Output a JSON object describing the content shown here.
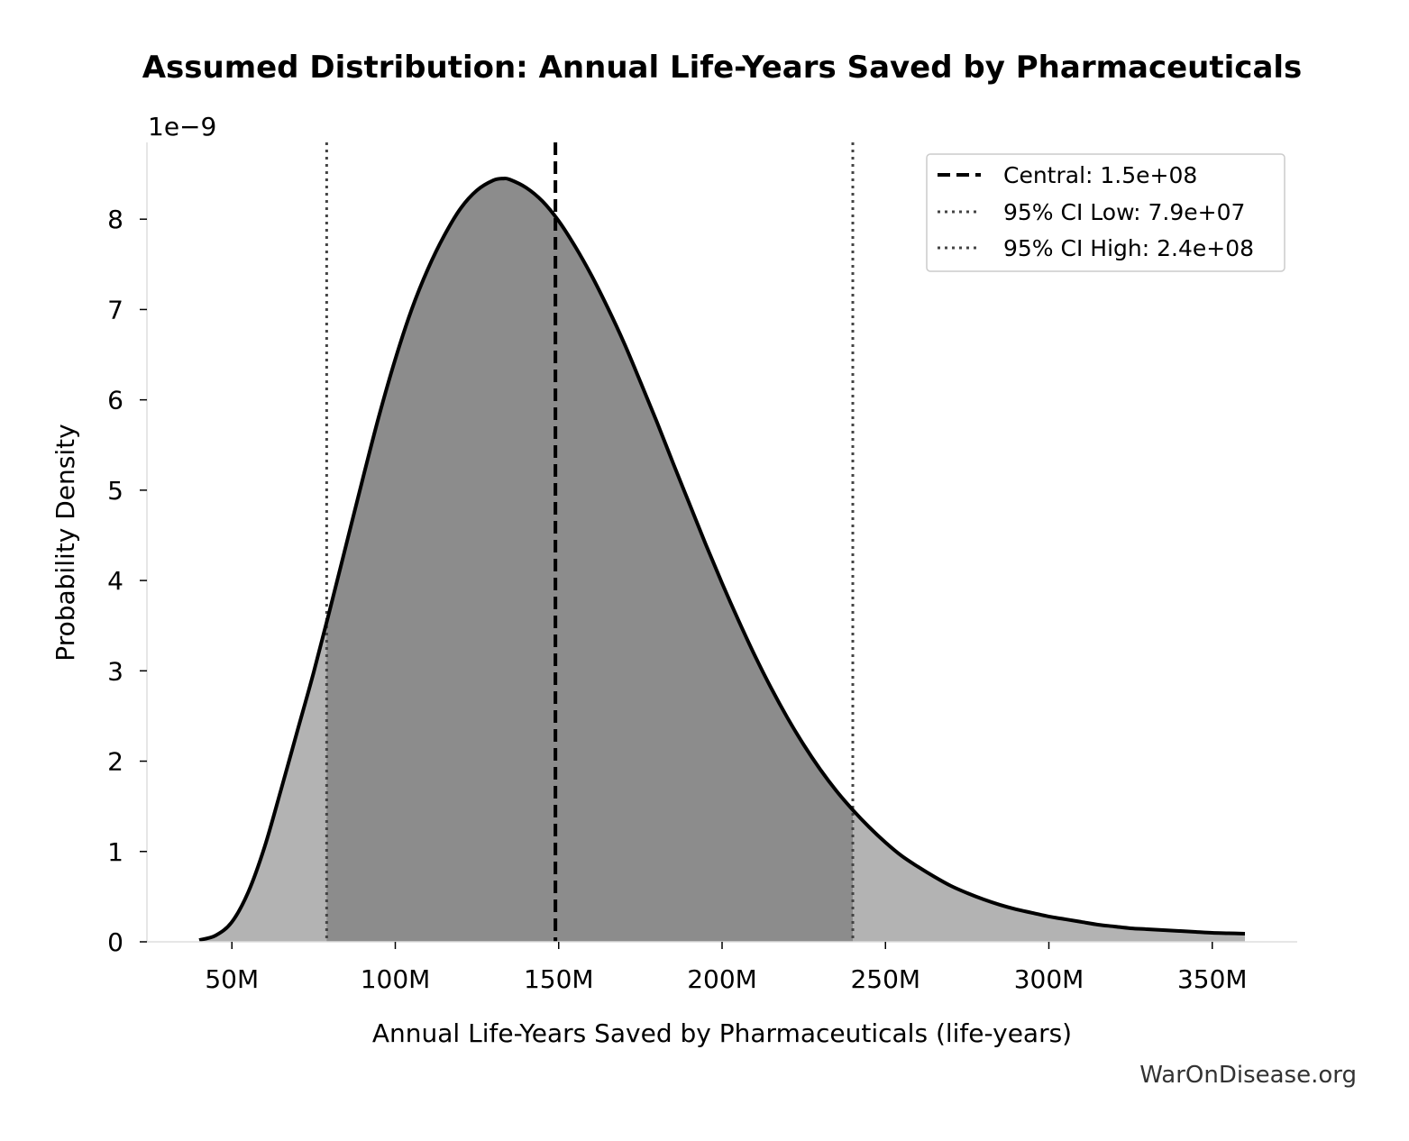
{
  "chart_data": {
    "type": "area",
    "title": "Assumed Distribution: Annual Life-Years Saved by Pharmaceuticals",
    "xlabel": "Annual Life-Years Saved by Pharmaceuticals (life-years)",
    "ylabel": "Probability Density",
    "y_scale_label": "1e−9",
    "xlim": [
      24000000,
      376000000
    ],
    "ylim": [
      0,
      8.85
    ],
    "x_ticks": [
      50000000,
      100000000,
      150000000,
      200000000,
      250000000,
      300000000,
      350000000
    ],
    "x_tick_labels": [
      "50M",
      "100M",
      "150M",
      "200M",
      "250M",
      "300M",
      "350M"
    ],
    "y_ticks": [
      0,
      1,
      2,
      3,
      4,
      5,
      6,
      7,
      8
    ],
    "y_tick_labels": [
      "0",
      "1",
      "2",
      "3",
      "4",
      "5",
      "6",
      "7",
      "8"
    ],
    "grid": false,
    "legend_position": "top-right",
    "series": [
      {
        "x": [
          40000000,
          45000000,
          50000000,
          55000000,
          60000000,
          65000000,
          70000000,
          75000000,
          80000000,
          85000000,
          90000000,
          95000000,
          100000000,
          105000000,
          110000000,
          115000000,
          120000000,
          125000000,
          130000000,
          133000000,
          135000000,
          140000000,
          145000000,
          150000000,
          155000000,
          160000000,
          165000000,
          170000000,
          175000000,
          180000000,
          185000000,
          190000000,
          195000000,
          200000000,
          205000000,
          210000000,
          215000000,
          220000000,
          225000000,
          230000000,
          235000000,
          240000000,
          245000000,
          250000000,
          255000000,
          260000000,
          265000000,
          270000000,
          275000000,
          280000000,
          285000000,
          290000000,
          295000000,
          300000000,
          305000000,
          310000000,
          315000000,
          320000000,
          325000000,
          330000000,
          335000000,
          340000000,
          345000000,
          350000000,
          355000000,
          360000000
        ],
        "values": [
          0.02,
          0.07,
          0.22,
          0.55,
          1.05,
          1.68,
          2.33,
          2.98,
          3.68,
          4.4,
          5.12,
          5.82,
          6.45,
          7.0,
          7.45,
          7.82,
          8.12,
          8.32,
          8.43,
          8.45,
          8.44,
          8.35,
          8.2,
          7.98,
          7.7,
          7.38,
          7.02,
          6.63,
          6.2,
          5.76,
          5.3,
          4.85,
          4.4,
          3.97,
          3.56,
          3.17,
          2.81,
          2.48,
          2.18,
          1.91,
          1.67,
          1.46,
          1.27,
          1.1,
          0.95,
          0.83,
          0.72,
          0.62,
          0.54,
          0.47,
          0.41,
          0.36,
          0.32,
          0.28,
          0.25,
          0.22,
          0.19,
          0.17,
          0.15,
          0.14,
          0.13,
          0.12,
          0.11,
          0.1,
          0.095,
          0.09
        ]
      }
    ],
    "reference_lines": [
      {
        "label": "Central: 1.5e+08",
        "x": 149000000,
        "style": "dashed"
      },
      {
        "label": "95% CI Low: 7.9e+07",
        "x": 79000000,
        "style": "dotted"
      },
      {
        "label": "95% CI High: 2.4e+08",
        "x": 240000000,
        "style": "dotted"
      }
    ],
    "colors": {
      "curve": "#000000",
      "ci_fill": "#8c8c8c",
      "tail_fill": "#b3b3b3",
      "central_line": "#000000",
      "ci_line": "#444444"
    }
  },
  "watermark": "WarOnDisease.org"
}
